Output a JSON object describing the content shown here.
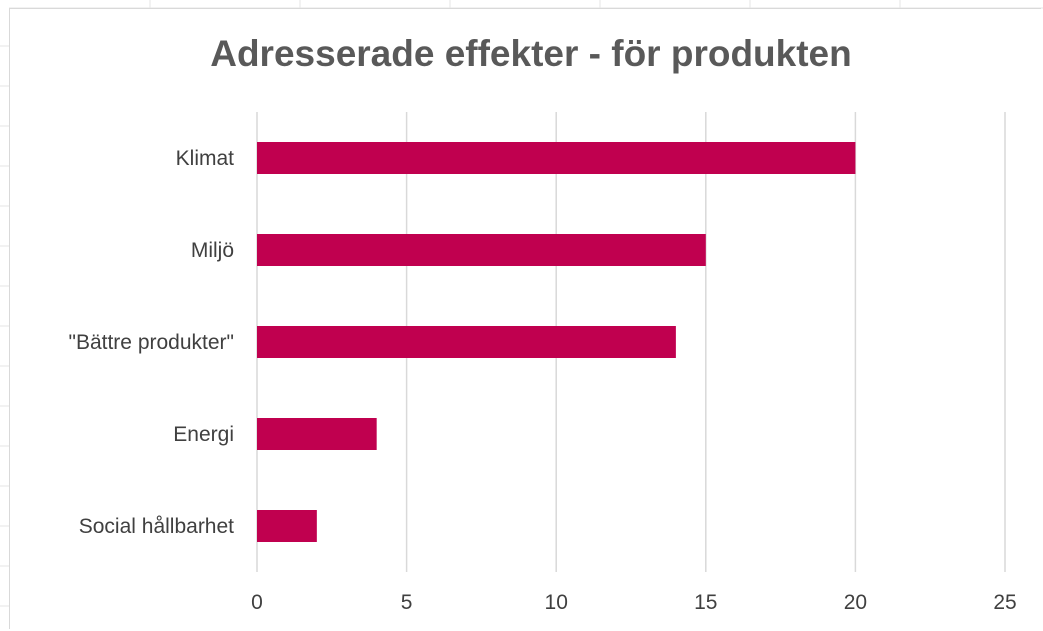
{
  "chart_data": {
    "type": "bar",
    "orientation": "horizontal",
    "title": "Adresserade effekter - för produkten",
    "categories": [
      "Klimat",
      "Miljö",
      "\"Bättre produkter\"",
      "Energi",
      "Social hållbarhet"
    ],
    "values": [
      20,
      15,
      14,
      4,
      2
    ],
    "xlim": [
      0,
      25
    ],
    "xticks": [
      0,
      5,
      10,
      15,
      20,
      25
    ],
    "xlabel": "",
    "ylabel": "",
    "grid": "vertical gridlines",
    "legend": "none",
    "bar_color": "#c0004f",
    "grid_color": "#d9d9d9"
  }
}
